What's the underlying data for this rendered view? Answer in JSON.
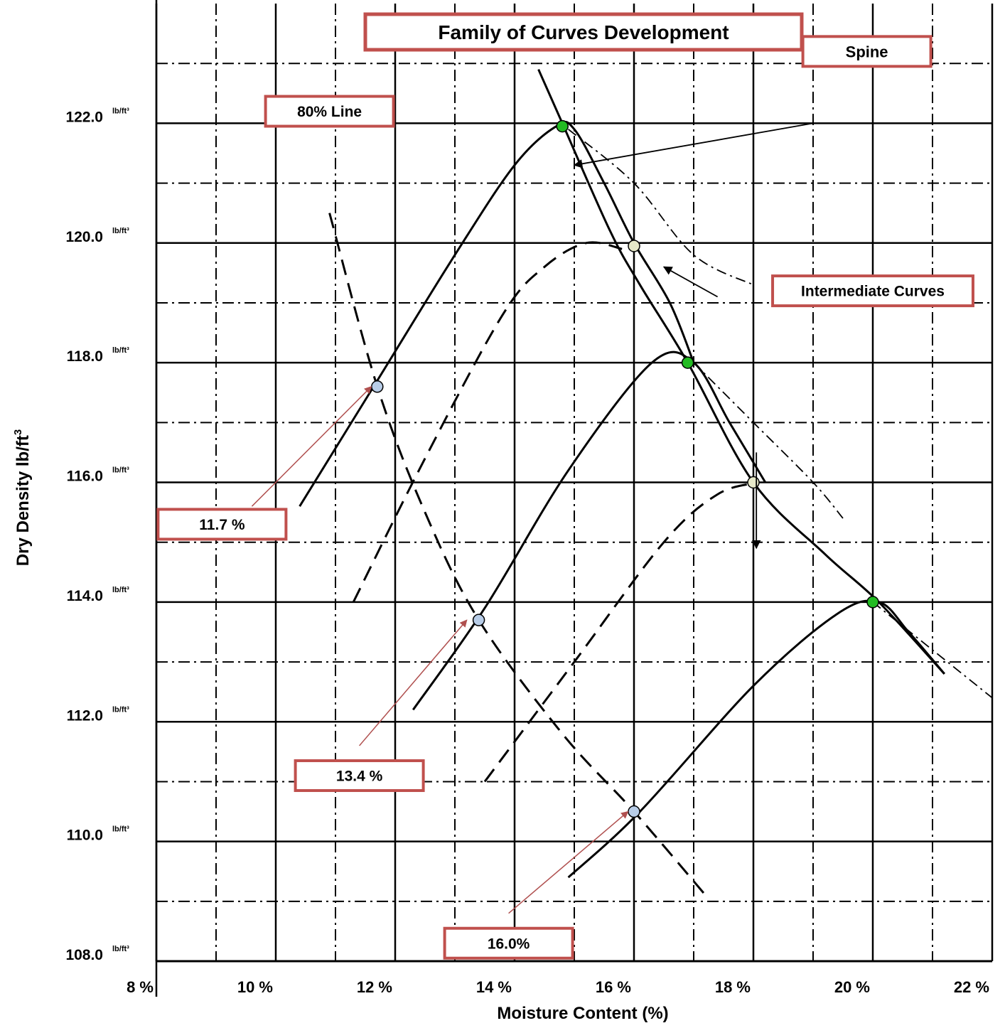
{
  "chart_data": {
    "type": "line",
    "title": "Family of Curves Development",
    "xlabel": "Moisture Content (%)",
    "ylabel": "Dry Density lb/ft",
    "ylabel_sup": "3",
    "xlim": [
      8,
      22
    ],
    "ylim": [
      108,
      124
    ],
    "x_tick_labels": [
      "8 %",
      "10 %",
      "12 %",
      "14 %",
      "16 %",
      "18 %",
      "20 %",
      "22 %"
    ],
    "y_tick_values": [
      "122.0",
      "120.0",
      "118.0",
      "116.0",
      "114.0",
      "112.0",
      "110.0",
      "108.0"
    ],
    "y_tick_unit": "lb/ft³",
    "grid": true,
    "series": [
      {
        "style": "solid",
        "points": [
          [
            10.4,
            115.6
          ],
          [
            11.7,
            117.7
          ],
          [
            13.0,
            119.8
          ],
          [
            14.0,
            121.3
          ],
          [
            14.7,
            121.95
          ],
          [
            15.0,
            121.9
          ],
          [
            15.5,
            121.0
          ],
          [
            16.0,
            120.0
          ],
          [
            16.6,
            119.0
          ],
          [
            17.0,
            118.0
          ]
        ]
      },
      {
        "style": "dashed",
        "points": [
          [
            11.3,
            114.0
          ],
          [
            12.5,
            116.4
          ],
          [
            13.8,
            118.8
          ],
          [
            14.5,
            119.6
          ],
          [
            15.2,
            120.0
          ],
          [
            15.8,
            119.9
          ]
        ]
      },
      {
        "style": "solid",
        "points": [
          [
            12.3,
            112.2
          ],
          [
            13.5,
            113.9
          ],
          [
            14.9,
            116.2
          ],
          [
            16.3,
            118.0
          ],
          [
            17.0,
            118.0
          ],
          [
            17.6,
            117.0
          ],
          [
            18.2,
            116.0
          ]
        ]
      },
      {
        "style": "dashed",
        "points": [
          [
            13.5,
            111.0
          ],
          [
            15.0,
            113.0
          ],
          [
            16.5,
            115.0
          ],
          [
            17.4,
            115.8
          ],
          [
            18.1,
            116.0
          ]
        ]
      },
      {
        "style": "solid",
        "points": [
          [
            14.9,
            109.4
          ],
          [
            16.1,
            110.5
          ],
          [
            18.0,
            112.6
          ],
          [
            19.4,
            113.8
          ],
          [
            20.1,
            114.0
          ],
          [
            20.6,
            113.5
          ],
          [
            21.2,
            112.8
          ]
        ]
      },
      {
        "style": "solid",
        "name_ref": "spine",
        "points": [
          [
            14.4,
            122.9
          ],
          [
            14.8,
            122.0
          ],
          [
            15.6,
            120.2
          ],
          [
            16.1,
            119.3
          ],
          [
            16.9,
            118.0
          ],
          [
            18.0,
            116.0
          ],
          [
            19.2,
            114.8
          ],
          [
            20.1,
            114.0
          ],
          [
            21.2,
            112.8
          ]
        ]
      },
      {
        "style": "dashed",
        "name_ref": "80% line",
        "points": [
          [
            10.9,
            120.5
          ],
          [
            11.7,
            117.6
          ],
          [
            12.5,
            115.5
          ],
          [
            13.4,
            113.7
          ],
          [
            14.8,
            111.8
          ],
          [
            16.0,
            110.5
          ],
          [
            17.2,
            109.1
          ]
        ]
      },
      {
        "style": "dashdot",
        "points": [
          [
            14.9,
            121.9
          ],
          [
            16.0,
            121.0
          ],
          [
            17.0,
            119.8
          ],
          [
            18.0,
            119.3
          ]
        ]
      },
      {
        "style": "dashdot",
        "points": [
          [
            17.0,
            118.0
          ],
          [
            18.0,
            117.0
          ],
          [
            19.0,
            116.0
          ],
          [
            19.5,
            115.4
          ]
        ]
      },
      {
        "style": "dashdot",
        "points": [
          [
            20.0,
            114.0
          ],
          [
            21.0,
            113.2
          ],
          [
            22.0,
            112.4
          ]
        ]
      }
    ],
    "markers": [
      {
        "x": 14.8,
        "y": 121.95,
        "color": "#22bb22"
      },
      {
        "x": 16.0,
        "y": 119.95,
        "color": "#e6e8c8"
      },
      {
        "x": 16.9,
        "y": 118.0,
        "color": "#22bb22"
      },
      {
        "x": 18.0,
        "y": 116.0,
        "color": "#e6e8c8"
      },
      {
        "x": 20.0,
        "y": 114.0,
        "color": "#22bb22"
      },
      {
        "x": 11.7,
        "y": 117.6,
        "color": "#b8cde8"
      },
      {
        "x": 13.4,
        "y": 113.7,
        "color": "#b8cde8"
      },
      {
        "x": 16.0,
        "y": 110.5,
        "color": "#b8cde8"
      }
    ],
    "annotations": [
      {
        "text": "Spine",
        "x": 19.9,
        "y": 123.2,
        "fs": 22,
        "arrow_from": [
          19.0,
          122.0
        ],
        "arrow_to": [
          15.0,
          121.3
        ],
        "arrow_color": "#000000"
      },
      {
        "text": "80% Line",
        "x": 10.9,
        "y": 122.2,
        "fs": 21
      },
      {
        "text": "Intermediate Curves",
        "x": 20.0,
        "y": 119.2,
        "fs": 21,
        "arrow_from": [
          17.4,
          119.1
        ],
        "arrow_to": [
          16.5,
          119.6
        ],
        "arrow_color": "#000000"
      },
      {
        "text": "11.7 %",
        "x": 9.1,
        "y": 115.3,
        "fs": 21,
        "arrow_from": [
          9.6,
          115.6
        ],
        "arrow_to": [
          11.6,
          117.6
        ],
        "arrow_color": "#b0504f"
      },
      {
        "text": "13.4 %",
        "x": 11.4,
        "y": 111.1,
        "fs": 21,
        "arrow_from": [
          11.4,
          111.6
        ],
        "arrow_to": [
          13.2,
          113.7
        ],
        "arrow_color": "#b0504f"
      },
      {
        "text": "16.0%",
        "x": 13.9,
        "y": 108.3,
        "fs": 21,
        "arrow_from": [
          13.9,
          108.8
        ],
        "arrow_to": [
          15.9,
          110.5
        ],
        "arrow_color": "#b0504f"
      }
    ],
    "extra_arrow": {
      "from": [
        18.05,
        116.5
      ],
      "to": [
        18.05,
        114.9
      ],
      "color": "#000000"
    },
    "colors": {
      "box_border": "#c0504d",
      "grid": "#000000",
      "spine_marker": "#22bb22"
    }
  }
}
